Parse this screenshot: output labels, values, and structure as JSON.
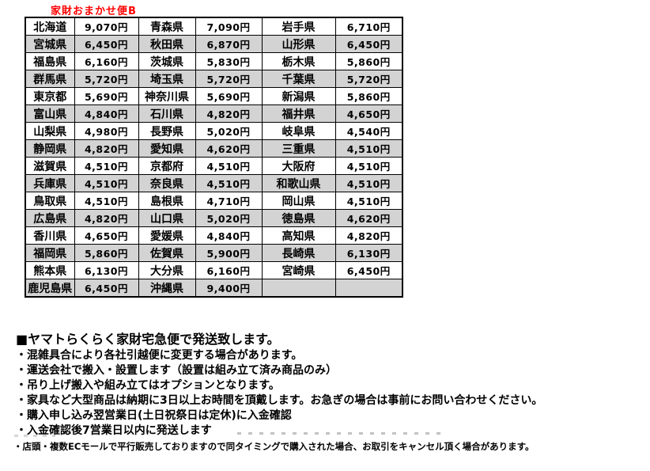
{
  "title": "家財おまかせ便B",
  "colors": {
    "title_red": "#ff0000",
    "row_stripe_gray": "#d3d3d3",
    "table_border": "#000000"
  },
  "table": {
    "description": "prefecture shipping fee grid, 16 rows x 3 prefecture/price pairs",
    "rows": [
      [
        "北海道",
        "9,070円",
        "青森県",
        "7,090円",
        "岩手県",
        "6,710円"
      ],
      [
        "宮城県",
        "6,450円",
        "秋田県",
        "6,870円",
        "山形県",
        "6,450円"
      ],
      [
        "福島県",
        "6,160円",
        "茨城県",
        "5,830円",
        "栃木県",
        "5,860円"
      ],
      [
        "群馬県",
        "5,720円",
        "埼玉県",
        "5,720円",
        "千葉県",
        "5,720円"
      ],
      [
        "東京都",
        "5,690円",
        "神奈川県",
        "5,690円",
        "新潟県",
        "5,860円"
      ],
      [
        "富山県",
        "4,840円",
        "石川県",
        "4,820円",
        "福井県",
        "4,650円"
      ],
      [
        "山梨県",
        "4,980円",
        "長野県",
        "5,020円",
        "岐阜県",
        "4,540円"
      ],
      [
        "静岡県",
        "4,820円",
        "愛知県",
        "4,620円",
        "三重県",
        "4,510円"
      ],
      [
        "滋賀県",
        "4,510円",
        "京都府",
        "4,510円",
        "大阪府",
        "4,510円"
      ],
      [
        "兵庫県",
        "4,510円",
        "奈良県",
        "4,510円",
        "和歌山県",
        "4,510円"
      ],
      [
        "鳥取県",
        "4,510円",
        "島根県",
        "4,710円",
        "岡山県",
        "4,510円"
      ],
      [
        "広島県",
        "4,820円",
        "山口県",
        "5,020円",
        "徳島県",
        "4,620円"
      ],
      [
        "香川県",
        "4,650円",
        "愛媛県",
        "4,840円",
        "高知県",
        "4,820円"
      ],
      [
        "福岡県",
        "5,860円",
        "佐賀県",
        "5,900円",
        "長崎県",
        "6,130円"
      ],
      [
        "熊本県",
        "6,130円",
        "大分県",
        "6,160円",
        "宮崎県",
        "6,450円"
      ],
      [
        "鹿児島県",
        "6,450円",
        "沖縄県",
        "9,400円",
        "",
        ""
      ]
    ]
  },
  "notes": {
    "heading": "■ヤマトらくらく家財宅急便で発送致します。",
    "bullets": [
      "・混雑具合により各社引越便に変更する場合があります。",
      "・運送会社で搬入・設置します（設置は組み立て済み商品のみ）",
      "・吊り上げ搬入や組み立てはオプションとなります。",
      "・家具など大型商品は納期に3日以上お時間を頂戴します。お急ぎの場合は事前にお問い合わせください。",
      "・購入申し込み翌営業日(土日祝祭日は定休)に入金確認",
      "・入金確認後7営業日以内に発送します"
    ],
    "small_note": "・店頭・複数ECモールで平行販売しておりますので同タイミングで購入された場合、お取引をキャンセル頂く場合があります。"
  }
}
